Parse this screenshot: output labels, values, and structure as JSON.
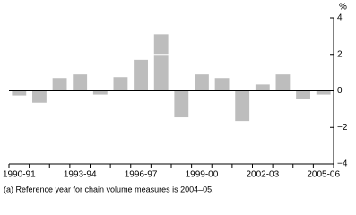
{
  "chart_data": {
    "type": "bar",
    "y_label": "%",
    "footnote": "(a) Reference year for chain volume measures is 2004–05.",
    "categories": [
      "1990-91",
      null,
      null,
      "1993-94",
      null,
      null,
      "1996-97",
      null,
      null,
      "1999-00",
      null,
      null,
      "2002-03",
      null,
      null,
      "2005-06"
    ],
    "values": [
      -0.25,
      -0.65,
      0.7,
      0.9,
      -0.2,
      0.75,
      1.7,
      3.1,
      -1.45,
      0.9,
      0.7,
      -1.65,
      0.35,
      0.9,
      -0.45,
      -0.2
    ],
    "color": "#bdbdbd",
    "ylim": [
      -4,
      4
    ],
    "yticks": [
      {
        "value": -4,
        "label": "−4"
      },
      {
        "value": -2,
        "label": "−2"
      },
      0,
      2,
      4
    ],
    "grid": true
  }
}
